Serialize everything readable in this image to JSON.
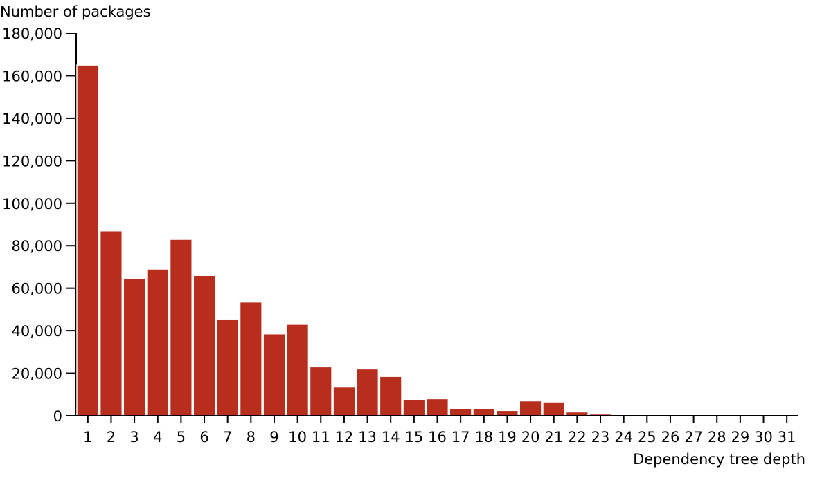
{
  "colors": {
    "bar": "#b82e1c"
  },
  "chart_data": {
    "type": "bar",
    "ylabel": "Number of packages",
    "xlabel": "Dependency tree depth",
    "ylim": [
      0,
      180000
    ],
    "y_ticks": [
      0,
      20000,
      40000,
      60000,
      80000,
      100000,
      120000,
      140000,
      160000,
      180000
    ],
    "y_tick_labels": [
      "0",
      "20,000",
      "40,000",
      "60,000",
      "80,000",
      "100,000",
      "120,000",
      "140,000",
      "160,000",
      "180,000"
    ],
    "categories": [
      "1",
      "2",
      "3",
      "4",
      "5",
      "6",
      "7",
      "8",
      "9",
      "10",
      "11",
      "12",
      "13",
      "14",
      "15",
      "16",
      "17",
      "18",
      "19",
      "20",
      "21",
      "22",
      "23",
      "24",
      "25",
      "26",
      "27",
      "28",
      "29",
      "30",
      "31"
    ],
    "values": [
      165000,
      87000,
      64500,
      69000,
      83000,
      66000,
      45500,
      53500,
      38500,
      43000,
      23000,
      13500,
      22000,
      18500,
      7500,
      8000,
      3200,
      3500,
      2500,
      7000,
      6500,
      1800,
      800,
      400,
      250,
      200,
      150,
      100,
      80,
      60,
      40
    ],
    "grid": false,
    "legend": "none"
  }
}
